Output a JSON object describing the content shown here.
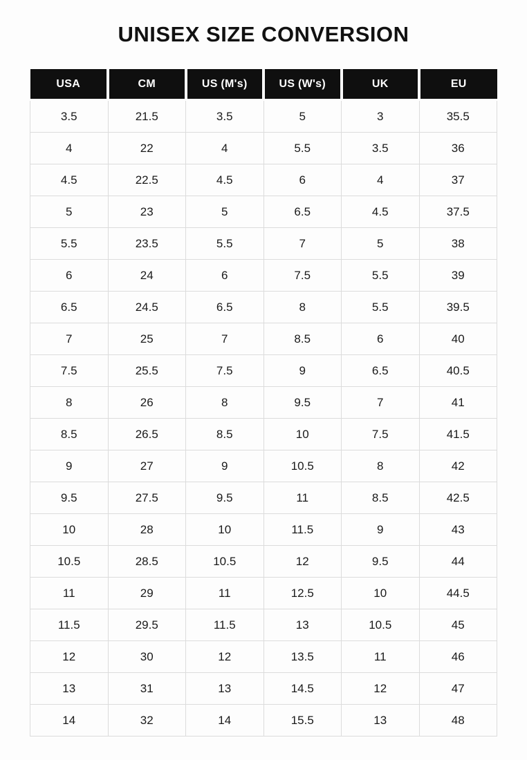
{
  "page": {
    "title": "UNISEX SIZE CONVERSION"
  },
  "colors": {
    "header_bg": "#0f0f0f",
    "header_text": "#ffffff",
    "cell_text": "#1a1a1a",
    "grid_border": "#dcdcdc",
    "background": "#fdfdfd"
  },
  "chart_data": {
    "type": "table",
    "title": "UNISEX SIZE CONVERSION",
    "columns": [
      "USA",
      "CM",
      "US (M's)",
      "US (W's)",
      "UK",
      "EU"
    ],
    "rows": [
      [
        "3.5",
        "21.5",
        "3.5",
        "5",
        "3",
        "35.5"
      ],
      [
        "4",
        "22",
        "4",
        "5.5",
        "3.5",
        "36"
      ],
      [
        "4.5",
        "22.5",
        "4.5",
        "6",
        "4",
        "37"
      ],
      [
        "5",
        "23",
        "5",
        "6.5",
        "4.5",
        "37.5"
      ],
      [
        "5.5",
        "23.5",
        "5.5",
        "7",
        "5",
        "38"
      ],
      [
        "6",
        "24",
        "6",
        "7.5",
        "5.5",
        "39"
      ],
      [
        "6.5",
        "24.5",
        "6.5",
        "8",
        "5.5",
        "39.5"
      ],
      [
        "7",
        "25",
        "7",
        "8.5",
        "6",
        "40"
      ],
      [
        "7.5",
        "25.5",
        "7.5",
        "9",
        "6.5",
        "40.5"
      ],
      [
        "8",
        "26",
        "8",
        "9.5",
        "7",
        "41"
      ],
      [
        "8.5",
        "26.5",
        "8.5",
        "10",
        "7.5",
        "41.5"
      ],
      [
        "9",
        "27",
        "9",
        "10.5",
        "8",
        "42"
      ],
      [
        "9.5",
        "27.5",
        "9.5",
        "11",
        "8.5",
        "42.5"
      ],
      [
        "10",
        "28",
        "10",
        "11.5",
        "9",
        "43"
      ],
      [
        "10.5",
        "28.5",
        "10.5",
        "12",
        "9.5",
        "44"
      ],
      [
        "11",
        "29",
        "11",
        "12.5",
        "10",
        "44.5"
      ],
      [
        "11.5",
        "29.5",
        "11.5",
        "13",
        "10.5",
        "45"
      ],
      [
        "12",
        "30",
        "12",
        "13.5",
        "11",
        "46"
      ],
      [
        "13",
        "31",
        "13",
        "14.5",
        "12",
        "47"
      ],
      [
        "14",
        "32",
        "14",
        "15.5",
        "13",
        "48"
      ]
    ]
  }
}
